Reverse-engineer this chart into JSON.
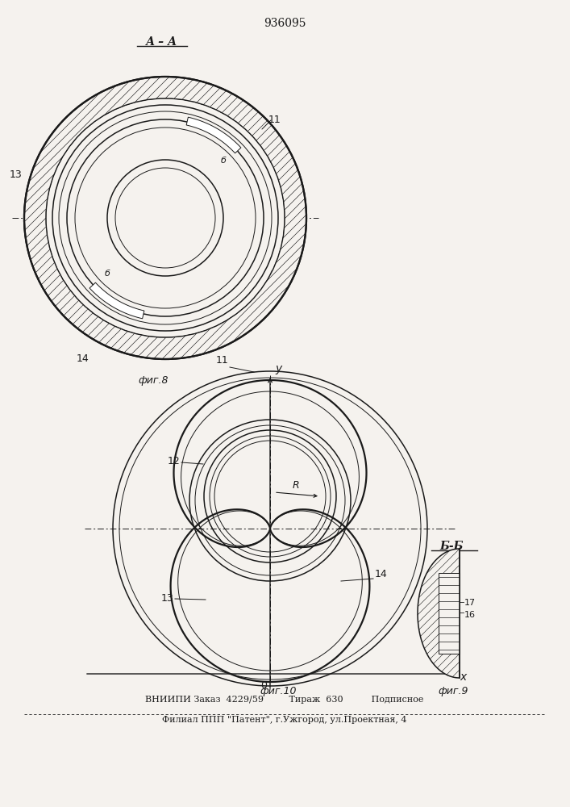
{
  "title": "936095",
  "fig8_label": "фиг.8",
  "fig9_label": "фиг.9",
  "fig10_label": "фиг.10",
  "section_aa": "А – А",
  "section_bb": "Б-Б",
  "bottom_line1": "ВНИИПИ Заказ  4229/59         Тираж  630          Подписное",
  "bottom_line2": "Филиал ППП \"Патент\", г.Ужгород, ул.Проектная, 4",
  "bg_color": "#f5f2ee",
  "line_color": "#1a1a1a"
}
